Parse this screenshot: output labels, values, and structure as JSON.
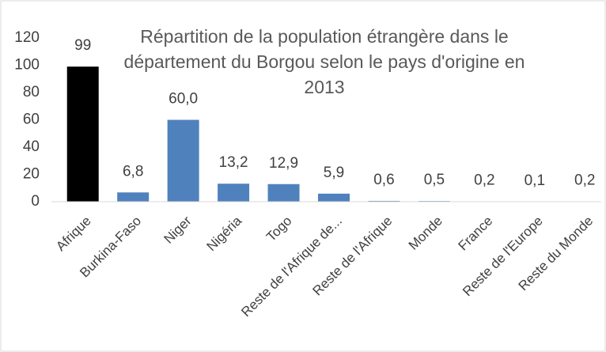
{
  "chart_data": {
    "type": "bar",
    "title": [
      "Répartition de la population étrangère dans le",
      "département du Borgou selon le pays d'origine en",
      "2013"
    ],
    "categories": [
      "Afrique",
      "Burkina-Faso",
      "Niger",
      "Nigéria",
      "Togo",
      "Reste de l'Afrique de...",
      "Reste de l'Afrique",
      "Monde",
      "France",
      "Reste de l'Europe",
      "Reste du Monde"
    ],
    "values": [
      99,
      6.8,
      60.0,
      13.2,
      12.9,
      5.9,
      0.6,
      0.5,
      0.2,
      0.1,
      0.2
    ],
    "value_labels": [
      "99",
      "6,8",
      "60,0",
      "13,2",
      "12,9",
      "5,9",
      "0,6",
      "0,5",
      "0,2",
      "0,1",
      "0,2"
    ],
    "colors": [
      "#000000",
      "#4f81bd",
      "#4f81bd",
      "#4f81bd",
      "#4f81bd",
      "#4f81bd",
      "#4f81bd",
      "#4f81bd",
      "#4f81bd",
      "#4f81bd",
      "#4f81bd"
    ],
    "ylim": [
      0,
      120
    ],
    "yticks": [
      0,
      20,
      40,
      60,
      80,
      100,
      120
    ],
    "grid": false
  }
}
